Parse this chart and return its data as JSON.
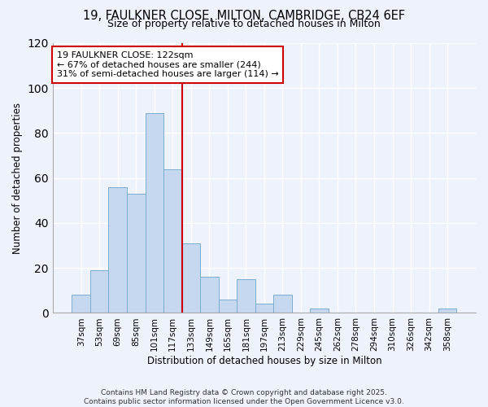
{
  "title": "19, FAULKNER CLOSE, MILTON, CAMBRIDGE, CB24 6EF",
  "subtitle": "Size of property relative to detached houses in Milton",
  "xlabel": "Distribution of detached houses by size in Milton",
  "ylabel": "Number of detached properties",
  "bar_labels": [
    "37sqm",
    "53sqm",
    "69sqm",
    "85sqm",
    "101sqm",
    "117sqm",
    "133sqm",
    "149sqm",
    "165sqm",
    "181sqm",
    "197sqm",
    "213sqm",
    "229sqm",
    "245sqm",
    "262sqm",
    "278sqm",
    "294sqm",
    "310sqm",
    "326sqm",
    "342sqm",
    "358sqm"
  ],
  "bar_values": [
    8,
    19,
    56,
    53,
    89,
    64,
    31,
    16,
    6,
    15,
    4,
    8,
    0,
    2,
    0,
    0,
    0,
    0,
    0,
    0,
    2
  ],
  "bar_color": "#c5d8ef",
  "bar_edge_color": "#7aadcf",
  "vline_x": 5.5,
  "vline_color": "#cc0000",
  "annotation_text": "19 FAULKNER CLOSE: 122sqm\n← 67% of detached houses are smaller (244)\n31% of semi-detached houses are larger (114) →",
  "annotation_box_color": "#ffffff",
  "annotation_box_edge": "#cc0000",
  "ylim": [
    0,
    120
  ],
  "yticks": [
    0,
    20,
    40,
    60,
    80,
    100,
    120
  ],
  "footer1": "Contains HM Land Registry data © Crown copyright and database right 2025.",
  "footer2": "Contains public sector information licensed under the Open Government Licence v3.0.",
  "bg_color": "#eef2fb",
  "grid_color": "#ffffff",
  "title_fontsize": 10.5,
  "subtitle_fontsize": 9,
  "ylabel_fontsize": 8.5,
  "xlabel_fontsize": 8.5,
  "tick_fontsize": 7.5,
  "annotation_fontsize": 8,
  "footer_fontsize": 6.5
}
